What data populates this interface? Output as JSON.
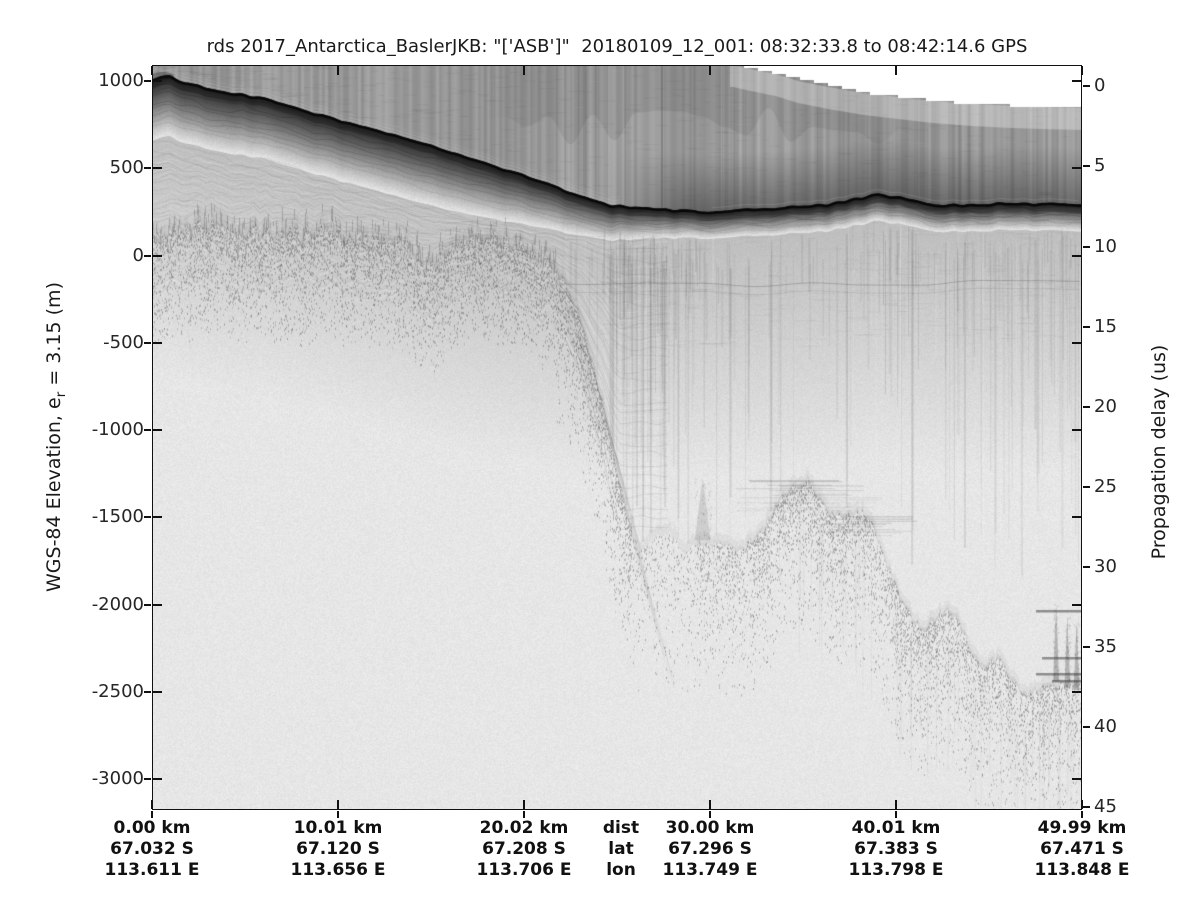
{
  "palette": {
    "figure_background": "#ffffff",
    "plot_background": "#e8e8e8",
    "sky_noise_gray": "#969696",
    "echo_dark": "#111111",
    "text": "#1a1a1a"
  },
  "chart_data": {
    "type": "heatmap",
    "description": "Grayscale airborne radar echogram (radargram) over the Aurora Subglacial Basin margin, Antarctica. Dark bands are strong radar echoes: the ice-sheet surface, englacial layering, and rugged bed topography.",
    "title": "rds 2017_Antarctica_BaslerJKB: \"['ASB']\"  20180109_12_001: 08:32:33.8 to 08:42:14.6 GPS",
    "grid": false,
    "left_y_axis": {
      "label": "WGS-84 Elevation, e_r = 3.15 (m)",
      "label_prefix": "WGS-84 Elevation, e",
      "label_sub": "r",
      "label_suffix": " = 3.15 (m)",
      "units": "m",
      "ticks": [
        1000,
        500,
        0,
        -500,
        -1000,
        -1500,
        -2000,
        -2500,
        -3000
      ],
      "range": [
        1092,
        -3185
      ]
    },
    "right_y_axis": {
      "label": "Propagation delay (us)",
      "units": "us",
      "ticks": [
        0,
        5,
        10,
        15,
        20,
        25,
        30,
        35,
        40,
        45
      ],
      "range": [
        -1.3,
        45.2
      ]
    },
    "x_axis": {
      "row_header": {
        "dist": "dist",
        "lat": "lat",
        "lon": "lon"
      },
      "tick_km": [
        0.0,
        10.01,
        20.02,
        30.0,
        40.01,
        49.99
      ],
      "columns": [
        {
          "dist": "0.00 km",
          "lat": "67.032 S",
          "lon": "113.611 E"
        },
        {
          "dist": "10.01 km",
          "lat": "67.120 S",
          "lon": "113.656 E"
        },
        {
          "dist": "20.02 km",
          "lat": "67.208 S",
          "lon": "113.706 E"
        },
        {
          "dist": "30.00 km",
          "lat": "67.296 S",
          "lon": "113.749 E"
        },
        {
          "dist": "40.01 km",
          "lat": "67.383 S",
          "lon": "113.798 E"
        },
        {
          "dist": "49.99 km",
          "lat": "67.471 S",
          "lon": "113.848 E"
        }
      ],
      "range_km": [
        0,
        49.99
      ]
    },
    "series": [
      {
        "name": "ice_surface_elevation_m",
        "x_km": [
          0,
          0.9,
          1.8,
          4.0,
          6.1,
          9.0,
          12.0,
          15.1,
          18.1,
          20.9,
          23.0,
          24.7,
          27.3,
          29.9,
          33.1,
          36.3,
          38.5,
          39.0,
          40.2,
          42.1,
          45.7,
          49.99
        ],
        "elev_m": [
          1000,
          1030,
          983,
          931,
          897,
          805,
          714,
          622,
          519,
          422,
          336,
          284,
          261,
          244,
          267,
          290,
          336,
          347,
          330,
          284,
          295,
          290
        ]
      },
      {
        "name": "bed_elevation_m",
        "x_km": [
          0,
          1.2,
          2.6,
          3.9,
          5.3,
          6.6,
          8.0,
          9.3,
          10.6,
          12.0,
          13.3,
          14.0,
          14.7,
          16.0,
          17.3,
          18.2,
          19.8,
          21.1,
          21.9,
          22.7,
          23.5,
          24.3,
          25.4,
          26.2,
          27.2,
          27.7,
          28.6,
          29.5,
          30.5,
          31.6,
          32.8,
          33.8,
          34.8,
          35.3,
          36.3,
          37.4,
          38.1,
          38.6,
          39.1,
          40.2,
          41.1,
          41.6,
          42.5,
          42.9,
          43.3,
          44.2,
          44.7,
          45.6,
          46.4,
          46.9,
          47.8,
          48.9,
          49.99
        ],
        "elev_m": [
          89,
          150,
          164,
          155,
          152,
          140,
          135,
          140,
          135,
          110,
          78,
          20,
          -71,
          49,
          100,
          112,
          61,
          -14,
          -111,
          -283,
          -541,
          -884,
          -1429,
          -1675,
          -1600,
          -1572,
          -1686,
          -1629,
          -1640,
          -1658,
          -1572,
          -1371,
          -1291,
          -1268,
          -1468,
          -1503,
          -1468,
          -1497,
          -1657,
          -1972,
          -2132,
          -2144,
          -2046,
          -2018,
          -2058,
          -2287,
          -2361,
          -2316,
          -2459,
          -2505,
          -2488,
          -2442,
          -2476
        ]
      },
      {
        "name": "englacial_layer_elevation_m",
        "x_km": [
          21.8,
          49.99
        ],
        "elev_m": [
          -160,
          -160
        ]
      }
    ],
    "no_data_wedge_top_right": {
      "x_km": [
        31.2,
        32.4,
        33.5,
        34.7,
        36.3,
        38.2,
        40.1,
        41.9,
        44.1,
        46.2,
        48.1,
        49.99
      ],
      "elev_m": [
        1092,
        1063,
        1040,
        1000,
        966,
        932,
        908,
        886,
        868,
        857,
        850,
        846
      ]
    },
    "bed_pinnacles": [
      {
        "x_km": 29.6,
        "top_elev_m": -1270,
        "base_elev_m": -1630
      },
      {
        "x_km": 48.6,
        "top_elev_m": -1990,
        "base_elev_m": -2440
      },
      {
        "x_km": 49.2,
        "top_elev_m": -2060,
        "base_elev_m": -2480
      },
      {
        "x_km": 49.7,
        "top_elev_m": -2100,
        "base_elev_m": -2490
      }
    ]
  }
}
